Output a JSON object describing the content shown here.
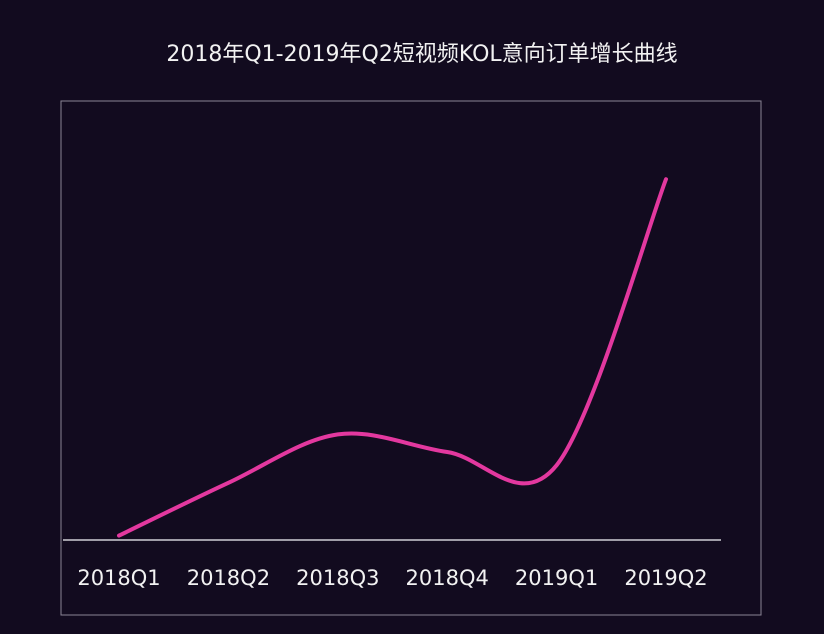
{
  "colors": {
    "background": "#120b1f",
    "frame": "#8a8594",
    "axis": "#cfcfd6",
    "line": "#e3389f",
    "text": "#f2f2f2"
  },
  "chart_data": {
    "type": "line",
    "title": "2018年Q1-2019年Q2短视频KOL意向订单增长曲线",
    "xlabel": "",
    "ylabel": "",
    "categories": [
      "2018Q1",
      "2018Q2",
      "2018Q3",
      "2018Q4",
      "2019Q1",
      "2019Q2"
    ],
    "series": [
      {
        "values": [
          1,
          13,
          24,
          20,
          17,
          82
        ]
      }
    ],
    "ylim": [
      0,
      100
    ],
    "smooth": true,
    "grid": false,
    "legend": "none",
    "y_axis_visible": false
  }
}
